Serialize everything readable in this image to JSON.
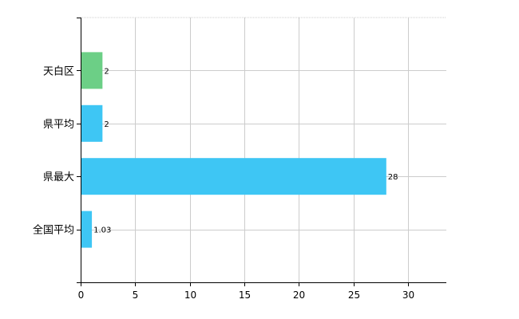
{
  "chart_data": {
    "type": "bar",
    "orientation": "horizontal",
    "categories": [
      "天白区",
      "県平均",
      "県最大",
      "全国平均"
    ],
    "values": [
      2,
      2,
      28,
      1.03
    ],
    "value_labels": [
      "2",
      "2",
      "28",
      "1.03"
    ],
    "bar_colors": [
      "#6ccf86",
      "#3ec6f4",
      "#3ec6f4",
      "#3ec6f4"
    ],
    "xlim": [
      0,
      33.5
    ],
    "xticks": [
      0,
      5,
      10,
      15,
      20,
      25,
      30
    ],
    "grid": true,
    "gridline_color": "#cccccc",
    "axis_color": "#000000",
    "title": "",
    "xlabel": "",
    "ylabel": "",
    "legend": "none"
  }
}
